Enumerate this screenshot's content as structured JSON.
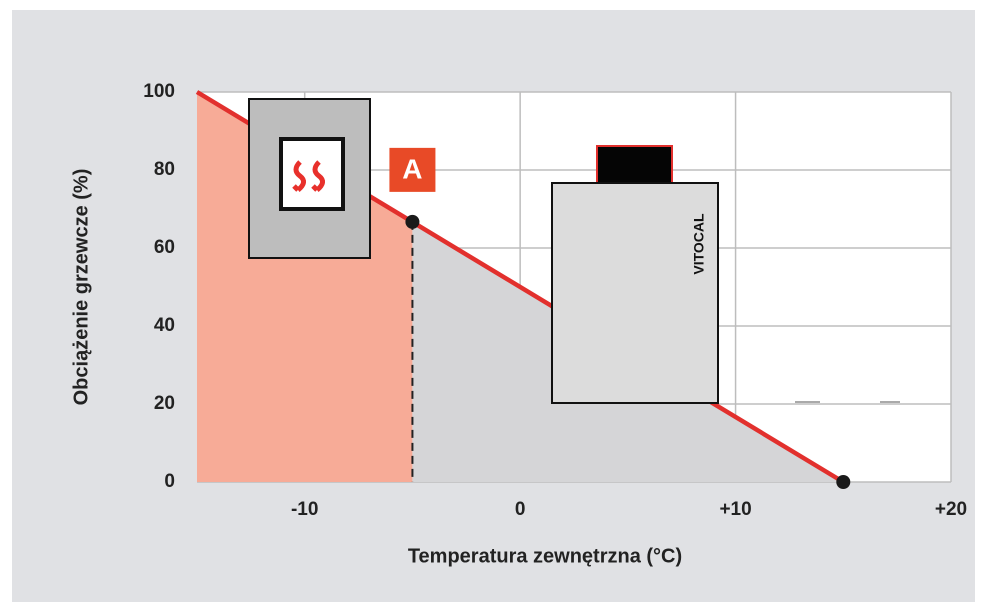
{
  "chart_data": {
    "type": "line",
    "x_label": "Temperatura zewnętrzna (°C)",
    "y_label": "Obciążenie grzewcze (%)",
    "line": {
      "color": "#e2302d",
      "x": [
        -15,
        15
      ],
      "values": [
        100,
        0
      ]
    },
    "points": {
      "color": "#1a1a1a",
      "x": [
        -5,
        15
      ],
      "values": [
        66.7,
        0
      ]
    },
    "area_colors": [
      "#f7ab97",
      "#d5d5d7"
    ],
    "annotation": "A",
    "device_label": "VITOCAL",
    "xlim": [
      -15,
      20
    ],
    "xticks": [
      -10,
      0,
      {
        "value": 10,
        "label": "+10"
      },
      {
        "value": 20,
        "label": "+20"
      }
    ],
    "ylim": [
      0,
      100
    ],
    "yticks": [
      0,
      20,
      40,
      60,
      80,
      100
    ],
    "grid": true
  }
}
